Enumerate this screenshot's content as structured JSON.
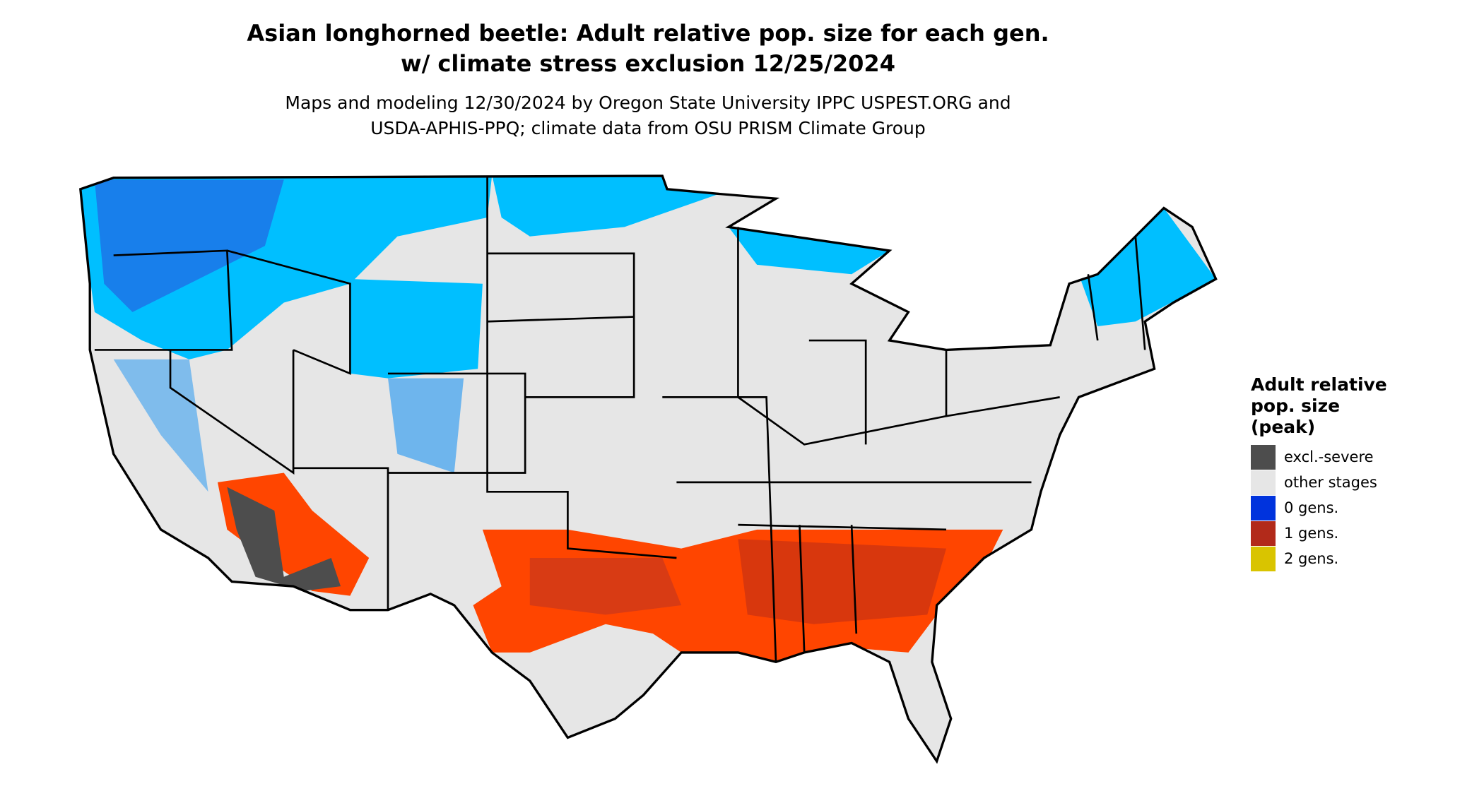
{
  "title": {
    "line1": "Asian longhorned beetle: Adult relative pop. size for each gen.",
    "line2": "w/ climate stress exclusion 12/25/2024"
  },
  "subtitle": {
    "line1": "Maps and modeling 12/30/2024 by Oregon State University IPPC USPEST.ORG and",
    "line2": "USDA-APHIS-PPQ; climate data from OSU PRISM Climate Group"
  },
  "legend": {
    "title": [
      "Adult relative",
      "pop. size",
      "(peak)"
    ],
    "items": [
      {
        "label": "excl.-severe",
        "color": "#4d4d4d"
      },
      {
        "label": "other stages",
        "color": "#e6e6e6"
      },
      {
        "label": "0 gens.",
        "color": "#0033dd"
      },
      {
        "label": "1 gens.",
        "color": "#b22a1a"
      },
      {
        "label": "2 gens.",
        "color": "#d9c400"
      }
    ]
  }
}
